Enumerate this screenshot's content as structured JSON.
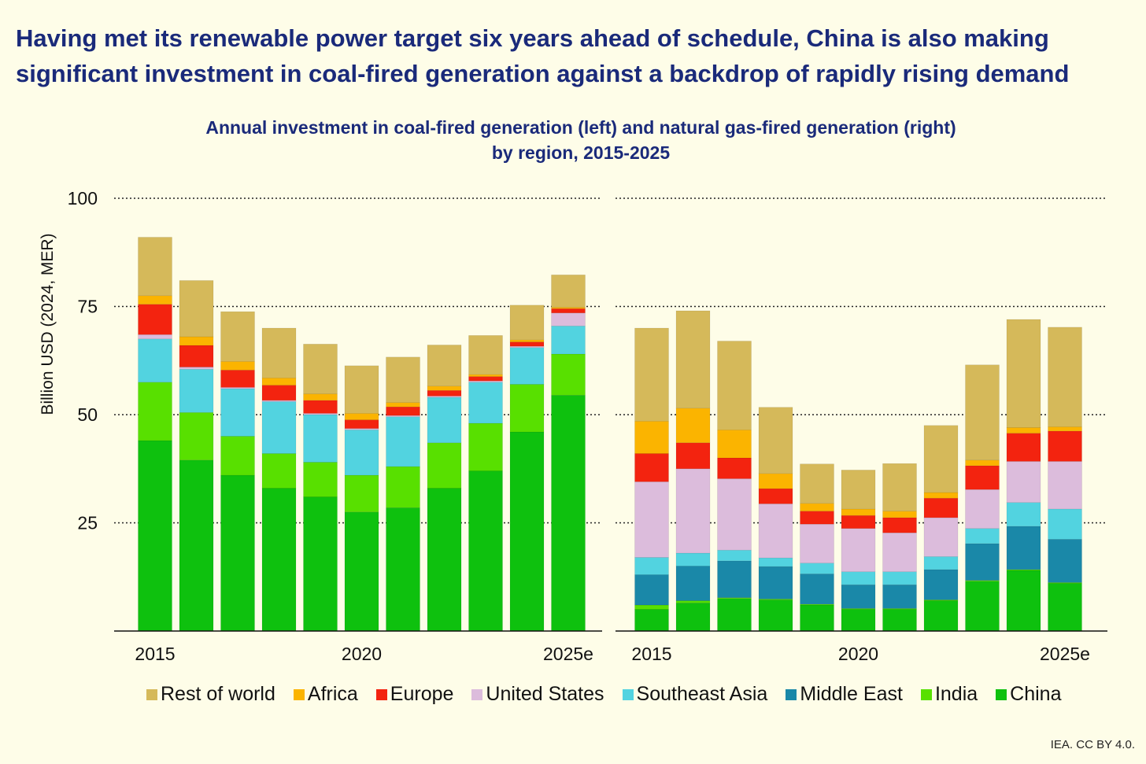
{
  "headline": {
    "line1": "Having met its renewable power target six years ahead of schedule, China is also making",
    "line2": "significant investment in coal-fired generation against a backdrop of rapidly rising demand"
  },
  "credit": "IEA. CC BY 4.0.",
  "chart_data": {
    "type": "bar",
    "stacked": true,
    "title": "Annual investment in coal-fired generation (left) and natural gas-fired generation (right)",
    "subtitle": "by region, 2015-2025",
    "ylabel": "Billion USD (2024, MER)",
    "ylim": [
      0,
      100
    ],
    "yticks": [
      25,
      50,
      75,
      100
    ],
    "grid": true,
    "legend_position": "bottom",
    "series_order": [
      "China",
      "India",
      "Middle East",
      "Southeast Asia",
      "United States",
      "Europe",
      "Africa",
      "Rest of world"
    ],
    "legend_order": [
      "Rest of world",
      "Africa",
      "Europe",
      "United States",
      "Southeast Asia",
      "Middle East",
      "India",
      "China"
    ],
    "colors": {
      "China": "#0ec10e",
      "India": "#58e000",
      "Middle East": "#1a88a8",
      "Southeast Asia": "#52d3e0",
      "United States": "#dcbcdc",
      "Europe": "#f3230f",
      "Africa": "#fbb400",
      "Rest of world": "#d5b95a"
    },
    "categories": [
      "2015",
      "2016",
      "2017",
      "2018",
      "2019",
      "2020",
      "2021",
      "2022",
      "2023",
      "2024",
      "2025e"
    ],
    "tick_labels": [
      "2015",
      "",
      "",
      "",
      "",
      "2020",
      "",
      "",
      "",
      "",
      "2025e"
    ],
    "panels": [
      {
        "name": "coal",
        "series": [
          {
            "name": "China",
            "values": [
              44,
              39.5,
              36,
              33,
              31,
              27.5,
              28.5,
              33,
              37,
              46,
              54.5
            ]
          },
          {
            "name": "India",
            "values": [
              13.5,
              11,
              9,
              8,
              8,
              8.5,
              9.5,
              10.5,
              11,
              11,
              9.5
            ]
          },
          {
            "name": "Middle East",
            "values": [
              0,
              0,
              0,
              0,
              0,
              0,
              0,
              0,
              0,
              0,
              0
            ]
          },
          {
            "name": "Southeast Asia",
            "values": [
              10,
              10,
              11,
              12,
              11,
              10.5,
              11.5,
              10.5,
              9.5,
              8.5,
              6.5
            ]
          },
          {
            "name": "United States",
            "values": [
              1,
              0.5,
              0.3,
              0.3,
              0.3,
              0.3,
              0.3,
              0.3,
              0.3,
              0.3,
              3
            ]
          },
          {
            "name": "Europe",
            "values": [
              7,
              5,
              4,
              3.5,
              3,
              2,
              2,
              1.3,
              1,
              1,
              1
            ]
          },
          {
            "name": "Africa",
            "values": [
              2,
              2,
              2,
              1.7,
              1.5,
              1.5,
              1,
              1,
              0.5,
              0.5,
              0.3
            ]
          },
          {
            "name": "Rest of world",
            "values": [
              13.5,
              13,
              11.5,
              11.5,
              11.5,
              11,
              10.5,
              9.5,
              9,
              8,
              7.5
            ]
          }
        ]
      },
      {
        "name": "gas",
        "series": [
          {
            "name": "China",
            "values": [
              5,
              6.5,
              7.5,
              7.2,
              6,
              5,
              5,
              7,
              11.5,
              14,
              11
            ]
          },
          {
            "name": "India",
            "values": [
              1,
              0.5,
              0.2,
              0.2,
              0.2,
              0.2,
              0.2,
              0.2,
              0.2,
              0.2,
              0.2
            ]
          },
          {
            "name": "Middle East",
            "values": [
              7,
              8,
              8.5,
              7.5,
              7,
              5.5,
              5.5,
              7,
              8.5,
              10,
              10
            ]
          },
          {
            "name": "Southeast Asia",
            "values": [
              4,
              3,
              2.5,
              2,
              2.5,
              3,
              3,
              3,
              3.5,
              5.5,
              7
            ]
          },
          {
            "name": "United States",
            "values": [
              17.5,
              19.5,
              16.5,
              12.5,
              9,
              10,
              9,
              9,
              9,
              9.5,
              11
            ]
          },
          {
            "name": "Europe",
            "values": [
              6.5,
              6,
              4.8,
              3.5,
              3,
              3,
              3.5,
              4.5,
              5.5,
              6.5,
              7
            ]
          },
          {
            "name": "Africa",
            "values": [
              7.5,
              8,
              6.5,
              3.5,
              1.8,
              1.5,
              1.5,
              1.3,
              1.3,
              1.3,
              1
            ]
          },
          {
            "name": "Rest of world",
            "values": [
              21.5,
              22.5,
              20.5,
              15.3,
              9.1,
              9,
              11,
              15.5,
              22,
              25,
              23
            ]
          }
        ]
      }
    ]
  }
}
